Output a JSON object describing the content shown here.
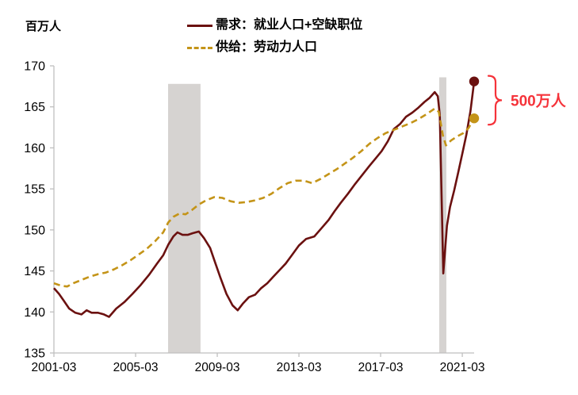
{
  "header": {
    "unit_label": "百万人"
  },
  "legend": {
    "items": [
      {
        "label": "需求：就业人口+空缺职位",
        "style": "solid",
        "color": "#6b1110"
      },
      {
        "label": "供给：劳动力人口",
        "style": "dashed",
        "color": "#c49418"
      }
    ]
  },
  "annotation": {
    "text": "500万人",
    "color": "#f5333a"
  },
  "colors": {
    "demand": "#6b1110",
    "supply": "#c49418",
    "annotation": "#f5333a",
    "band": "#d6d3d1",
    "axis": "#bfbfbf",
    "tick_text": "#000000"
  },
  "chart_data": {
    "type": "line",
    "title": "",
    "xlabel": "",
    "ylabel": "百万人",
    "ylim": [
      135,
      170
    ],
    "yticks": [
      135,
      140,
      145,
      150,
      155,
      160,
      165,
      170
    ],
    "xticks": [
      {
        "label": "2001-03",
        "x": 2001.25
      },
      {
        "label": "2005-03",
        "x": 2005.25
      },
      {
        "label": "2009-03",
        "x": 2009.25
      },
      {
        "label": "2013-03",
        "x": 2013.25
      },
      {
        "label": "2017-03",
        "x": 2017.25
      },
      {
        "label": "2021-03",
        "x": 2021.25
      }
    ],
    "xlim": [
      2001.25,
      2021.83
    ],
    "grid": false,
    "legend_position": "top-center",
    "recession_bands": [
      {
        "x_start": 2006.84,
        "x_end": 2008.43,
        "top_value": 167.8
      },
      {
        "x_start": 2020.12,
        "x_end": 2020.47,
        "top_value": 168.6
      }
    ],
    "series": [
      {
        "name": "需求：就业人口+空缺职位",
        "style": "solid",
        "color": "#6b1110",
        "end_dot": [
          2021.83,
          168.1
        ],
        "points": [
          [
            2001.25,
            142.9
          ],
          [
            2001.5,
            142.2
          ],
          [
            2001.75,
            141.3
          ],
          [
            2002.0,
            140.4
          ],
          [
            2002.3,
            139.9
          ],
          [
            2002.6,
            139.7
          ],
          [
            2002.85,
            140.2
          ],
          [
            2003.1,
            139.9
          ],
          [
            2003.4,
            139.9
          ],
          [
            2003.7,
            139.7
          ],
          [
            2003.95,
            139.4
          ],
          [
            2004.3,
            140.4
          ],
          [
            2004.7,
            141.2
          ],
          [
            2005.1,
            142.2
          ],
          [
            2005.5,
            143.3
          ],
          [
            2005.9,
            144.5
          ],
          [
            2006.3,
            145.9
          ],
          [
            2006.6,
            146.9
          ],
          [
            2006.85,
            148.2
          ],
          [
            2007.1,
            149.2
          ],
          [
            2007.3,
            149.7
          ],
          [
            2007.55,
            149.4
          ],
          [
            2007.8,
            149.4
          ],
          [
            2008.05,
            149.6
          ],
          [
            2008.35,
            149.8
          ],
          [
            2008.6,
            149.0
          ],
          [
            2008.9,
            147.8
          ],
          [
            2009.15,
            146.0
          ],
          [
            2009.4,
            144.2
          ],
          [
            2009.7,
            142.2
          ],
          [
            2010.0,
            140.8
          ],
          [
            2010.25,
            140.2
          ],
          [
            2010.5,
            141.0
          ],
          [
            2010.8,
            141.8
          ],
          [
            2011.1,
            142.1
          ],
          [
            2011.4,
            142.9
          ],
          [
            2011.7,
            143.5
          ],
          [
            2012.0,
            144.3
          ],
          [
            2012.3,
            145.1
          ],
          [
            2012.6,
            145.9
          ],
          [
            2012.9,
            146.9
          ],
          [
            2013.25,
            148.1
          ],
          [
            2013.6,
            148.9
          ],
          [
            2014.0,
            149.2
          ],
          [
            2014.35,
            150.2
          ],
          [
            2014.7,
            151.2
          ],
          [
            2015.0,
            152.3
          ],
          [
            2015.3,
            153.3
          ],
          [
            2015.65,
            154.4
          ],
          [
            2016.0,
            155.6
          ],
          [
            2016.35,
            156.7
          ],
          [
            2016.7,
            157.8
          ],
          [
            2017.0,
            158.7
          ],
          [
            2017.3,
            159.6
          ],
          [
            2017.6,
            160.8
          ],
          [
            2017.9,
            162.3
          ],
          [
            2018.2,
            162.9
          ],
          [
            2018.5,
            163.8
          ],
          [
            2018.8,
            164.3
          ],
          [
            2019.1,
            164.9
          ],
          [
            2019.4,
            165.6
          ],
          [
            2019.65,
            166.1
          ],
          [
            2019.9,
            166.8
          ],
          [
            2020.05,
            166.3
          ],
          [
            2020.15,
            164.0
          ],
          [
            2020.32,
            144.7
          ],
          [
            2020.5,
            150.5
          ],
          [
            2020.65,
            152.8
          ],
          [
            2020.85,
            154.8
          ],
          [
            2021.05,
            157.0
          ],
          [
            2021.25,
            159.3
          ],
          [
            2021.45,
            161.6
          ],
          [
            2021.65,
            164.5
          ],
          [
            2021.83,
            168.1
          ]
        ]
      },
      {
        "name": "供给：劳动力人口",
        "style": "dashed",
        "color": "#c49418",
        "end_dot": [
          2021.83,
          163.6
        ],
        "points": [
          [
            2001.25,
            143.5
          ],
          [
            2001.6,
            143.2
          ],
          [
            2001.9,
            143.1
          ],
          [
            2002.2,
            143.5
          ],
          [
            2002.6,
            143.9
          ],
          [
            2003.0,
            144.3
          ],
          [
            2003.4,
            144.6
          ],
          [
            2003.8,
            144.8
          ],
          [
            2004.2,
            145.2
          ],
          [
            2004.6,
            145.7
          ],
          [
            2005.0,
            146.3
          ],
          [
            2005.4,
            147.0
          ],
          [
            2005.8,
            147.7
          ],
          [
            2006.2,
            148.6
          ],
          [
            2006.6,
            149.7
          ],
          [
            2006.85,
            150.9
          ],
          [
            2007.1,
            151.6
          ],
          [
            2007.4,
            152.0
          ],
          [
            2007.7,
            151.9
          ],
          [
            2008.0,
            152.4
          ],
          [
            2008.35,
            153.1
          ],
          [
            2008.7,
            153.6
          ],
          [
            2009.1,
            154.0
          ],
          [
            2009.5,
            153.9
          ],
          [
            2009.9,
            153.5
          ],
          [
            2010.3,
            153.3
          ],
          [
            2010.7,
            153.4
          ],
          [
            2011.1,
            153.6
          ],
          [
            2011.5,
            153.9
          ],
          [
            2011.9,
            154.4
          ],
          [
            2012.3,
            155.1
          ],
          [
            2012.7,
            155.7
          ],
          [
            2013.1,
            156.0
          ],
          [
            2013.5,
            156.0
          ],
          [
            2013.9,
            155.7
          ],
          [
            2014.3,
            156.2
          ],
          [
            2014.7,
            156.8
          ],
          [
            2015.1,
            157.4
          ],
          [
            2015.5,
            158.1
          ],
          [
            2015.9,
            158.8
          ],
          [
            2016.3,
            159.6
          ],
          [
            2016.7,
            160.5
          ],
          [
            2017.1,
            161.2
          ],
          [
            2017.5,
            161.8
          ],
          [
            2017.9,
            162.2
          ],
          [
            2018.3,
            162.6
          ],
          [
            2018.7,
            163.0
          ],
          [
            2019.1,
            163.5
          ],
          [
            2019.5,
            164.1
          ],
          [
            2019.9,
            164.8
          ],
          [
            2020.1,
            164.4
          ],
          [
            2020.3,
            161.5
          ],
          [
            2020.45,
            160.3
          ],
          [
            2020.7,
            160.9
          ],
          [
            2021.0,
            161.4
          ],
          [
            2021.3,
            161.8
          ],
          [
            2021.55,
            162.4
          ],
          [
            2021.83,
            163.6
          ]
        ]
      }
    ],
    "annotation": {
      "text": "500万人"
    }
  }
}
